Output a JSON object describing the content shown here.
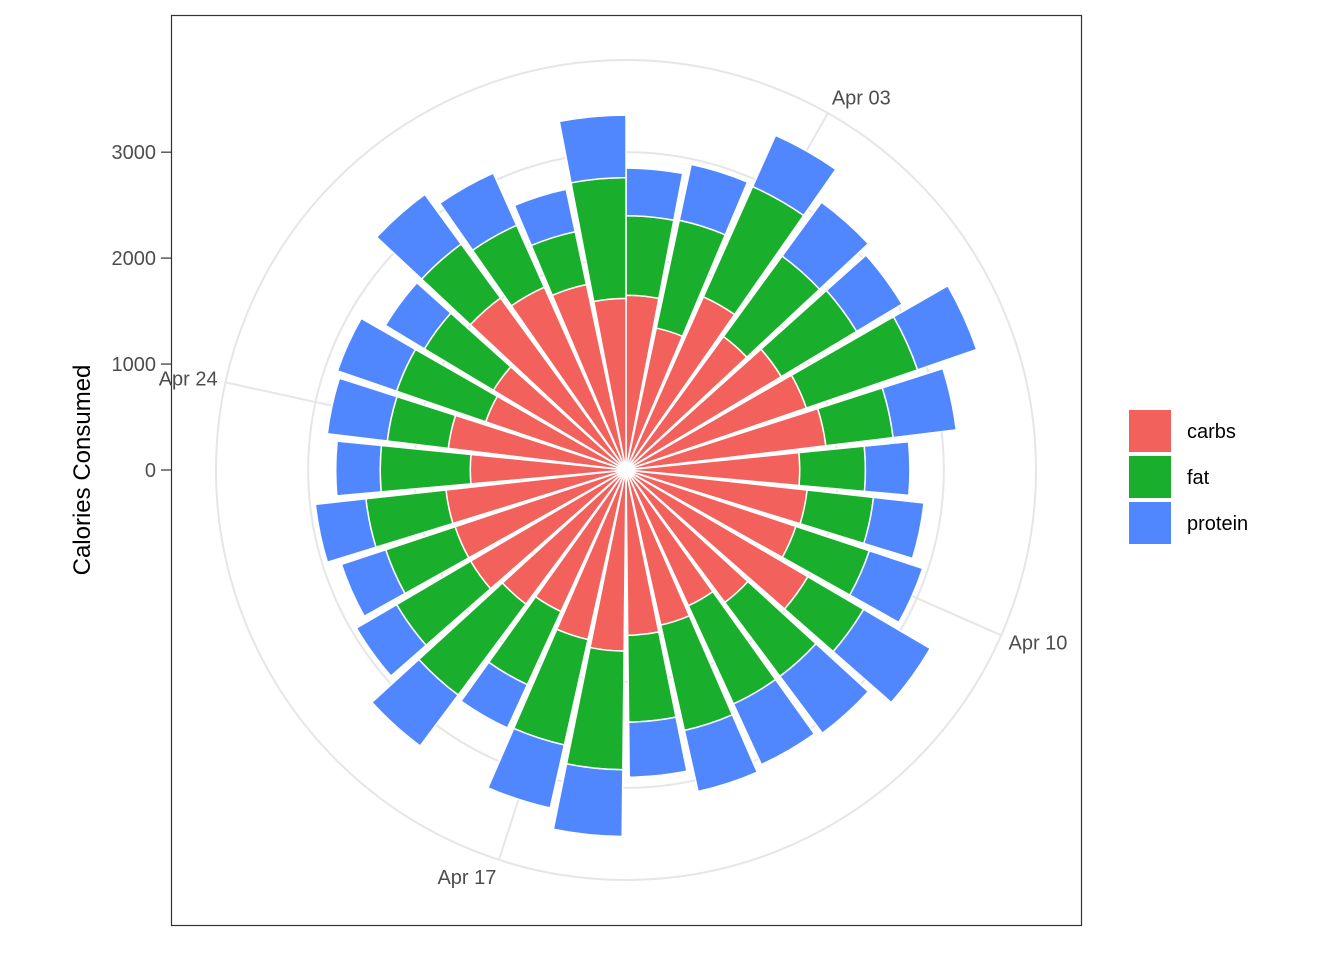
{
  "chart_data": {
    "type": "polar-stacked-bar",
    "y_label": "Calories Consumed",
    "x": [
      1,
      2,
      3,
      4,
      5,
      6,
      7,
      8,
      9,
      10,
      11,
      12,
      13,
      14,
      15,
      16,
      17,
      18,
      19,
      20,
      21,
      22,
      23,
      24,
      25,
      26,
      27,
      28,
      29,
      30
    ],
    "xlim": [
      0.55,
      30.45
    ],
    "xticks": [
      {
        "value": 3,
        "label": "Apr 03"
      },
      {
        "value": 10,
        "label": "Apr 10"
      },
      {
        "value": 17,
        "label": "Apr 17"
      },
      {
        "value": 24,
        "label": "Apr 24"
      }
    ],
    "ylim": [
      0,
      3870
    ],
    "yticks": [
      0,
      1000,
      2000,
      3000
    ],
    "grid": true,
    "legend_position": "right",
    "series": [
      {
        "name": "carbs",
        "color": "#F3615C",
        "values": [
          1650,
          1370,
          1790,
          1560,
          1710,
          1800,
          1900,
          1640,
          1720,
          1690,
          1990,
          1560,
          1410,
          1500,
          1560,
          1710,
          1640,
          1470,
          1580,
          1700,
          1700,
          1710,
          1470,
          1690,
          1400,
          1460,
          2010,
          1890,
          1790,
          1620
        ]
      },
      {
        "name": "fat",
        "color": "#19AF2D",
        "values": [
          750,
          1040,
          1140,
          940,
          830,
          1110,
          640,
          620,
          630,
          730,
          610,
          870,
          1020,
          1020,
          820,
          1120,
          1020,
          760,
          1070,
          810,
          690,
          760,
          850,
          580,
          890,
          760,
          630,
          640,
          510,
          1140
        ]
      },
      {
        "name": "protein",
        "color": "#5087FF",
        "values": [
          450,
          540,
          530,
          630,
          500,
          590,
          600,
          420,
          480,
          530,
          730,
          670,
          630,
          590,
          520,
          630,
          610,
          450,
          600,
          440,
          440,
          480,
          420,
          570,
          590,
          430,
          580,
          540,
          410,
          590
        ]
      }
    ]
  }
}
